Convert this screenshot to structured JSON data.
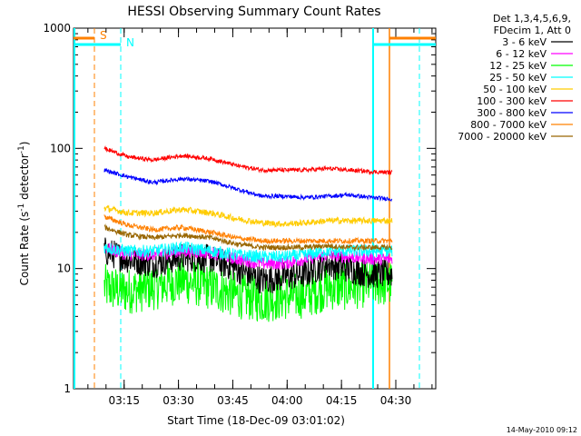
{
  "chart_data": {
    "type": "line",
    "title": "HESSI Observing Summary Count Rates",
    "xlabel": "Start Time (18-Dec-09 03:01:02)",
    "ylabel_main": "Count Rate (s",
    "ylabel_sup1": "-1",
    "ylabel_mid": " detector",
    "ylabel_sup2": "-1",
    "ylabel_end": ")",
    "y_scale": "log",
    "ylim": [
      1,
      1000
    ],
    "xlim_minutes_from_start": [
      0,
      100
    ],
    "x_ticks": [
      {
        "label": "03:15",
        "minute": 13.97
      },
      {
        "label": "03:30",
        "minute": 28.97
      },
      {
        "label": "03:45",
        "minute": 43.97
      },
      {
        "label": "04:00",
        "minute": 58.97
      },
      {
        "label": "04:15",
        "minute": 73.97
      },
      {
        "label": "04:30",
        "minute": 88.97
      }
    ],
    "y_ticks": [
      {
        "label": "1",
        "value": 1
      },
      {
        "label": "10",
        "value": 10
      },
      {
        "label": "100",
        "value": 100
      },
      {
        "label": "1000",
        "value": 1000
      }
    ],
    "legend_header": [
      "Det 1,3,4,5,6,9,",
      "FDecim 1, Att 0"
    ],
    "legend_placement": "right",
    "annotations": [
      {
        "label": "S",
        "color": "#ff8000"
      },
      {
        "label": "N",
        "color": "#00ffff"
      }
    ],
    "data_window_minutes": [
      8.5,
      88
    ],
    "series": [
      {
        "name": "3 - 6 keV",
        "color": "#000000",
        "values": [
          [
            8.5,
            14
          ],
          [
            15,
            12
          ],
          [
            22,
            11
          ],
          [
            30,
            12.5
          ],
          [
            38,
            12
          ],
          [
            45,
            10
          ],
          [
            52,
            8
          ],
          [
            58,
            8.5
          ],
          [
            64,
            9
          ],
          [
            70,
            11
          ],
          [
            76,
            10
          ],
          [
            82,
            9
          ],
          [
            88,
            9
          ]
        ]
      },
      {
        "name": "6 - 12 keV",
        "color": "#ff00ff",
        "values": [
          [
            8.5,
            15
          ],
          [
            15,
            13
          ],
          [
            22,
            13
          ],
          [
            30,
            14
          ],
          [
            38,
            13.5
          ],
          [
            45,
            12
          ],
          [
            52,
            11
          ],
          [
            58,
            11
          ],
          [
            64,
            12
          ],
          [
            70,
            13
          ],
          [
            76,
            12.5
          ],
          [
            82,
            12
          ],
          [
            88,
            12
          ]
        ]
      },
      {
        "name": "12 - 25 keV",
        "color": "#00ff00",
        "values": [
          [
            8.5,
            7
          ],
          [
            15,
            6.5
          ],
          [
            22,
            7
          ],
          [
            30,
            8
          ],
          [
            38,
            7
          ],
          [
            45,
            6
          ],
          [
            52,
            5.5
          ],
          [
            58,
            5.8
          ],
          [
            64,
            6
          ],
          [
            70,
            7
          ],
          [
            76,
            7
          ],
          [
            82,
            7.5
          ],
          [
            88,
            7.5
          ]
        ]
      },
      {
        "name": "25 - 50 keV",
        "color": "#00ffff",
        "values": [
          [
            8.5,
            15
          ],
          [
            15,
            14
          ],
          [
            22,
            14
          ],
          [
            30,
            15
          ],
          [
            38,
            14
          ],
          [
            45,
            13
          ],
          [
            52,
            12.5
          ],
          [
            58,
            12.5
          ],
          [
            64,
            13
          ],
          [
            70,
            14
          ],
          [
            76,
            14
          ],
          [
            82,
            14
          ],
          [
            88,
            14
          ]
        ]
      },
      {
        "name": "50 - 100 keV",
        "color": "#ffcc00",
        "values": [
          [
            8.5,
            32
          ],
          [
            15,
            29
          ],
          [
            22,
            29
          ],
          [
            30,
            31
          ],
          [
            38,
            29
          ],
          [
            45,
            26
          ],
          [
            52,
            24
          ],
          [
            58,
            23.5
          ],
          [
            64,
            24
          ],
          [
            70,
            25
          ],
          [
            76,
            25
          ],
          [
            82,
            25
          ],
          [
            88,
            25
          ]
        ]
      },
      {
        "name": "100 - 300 keV",
        "color": "#ff0000",
        "values": [
          [
            8.5,
            100
          ],
          [
            15,
            85
          ],
          [
            22,
            80
          ],
          [
            30,
            87
          ],
          [
            38,
            82
          ],
          [
            45,
            72
          ],
          [
            52,
            66
          ],
          [
            58,
            66
          ],
          [
            64,
            66
          ],
          [
            70,
            68
          ],
          [
            76,
            66
          ],
          [
            82,
            64
          ],
          [
            88,
            63
          ]
        ]
      },
      {
        "name": "300 - 800 keV",
        "color": "#0000ff",
        "values": [
          [
            8.5,
            66
          ],
          [
            15,
            58
          ],
          [
            22,
            52
          ],
          [
            30,
            56
          ],
          [
            38,
            53
          ],
          [
            45,
            46
          ],
          [
            52,
            40
          ],
          [
            58,
            40
          ],
          [
            64,
            39
          ],
          [
            70,
            40
          ],
          [
            76,
            41
          ],
          [
            82,
            39
          ],
          [
            88,
            38
          ]
        ]
      },
      {
        "name": "800 - 7000 keV",
        "color": "#ff8000",
        "values": [
          [
            8.5,
            27
          ],
          [
            15,
            23
          ],
          [
            22,
            21
          ],
          [
            30,
            22
          ],
          [
            38,
            20
          ],
          [
            45,
            18
          ],
          [
            52,
            17
          ],
          [
            58,
            17
          ],
          [
            64,
            17
          ],
          [
            70,
            17
          ],
          [
            76,
            17
          ],
          [
            82,
            17
          ],
          [
            88,
            17
          ]
        ]
      },
      {
        "name": "7000 - 20000 keV",
        "color": "#996600",
        "values": [
          [
            8.5,
            22
          ],
          [
            15,
            19
          ],
          [
            22,
            18
          ],
          [
            30,
            19
          ],
          [
            38,
            18
          ],
          [
            45,
            16
          ],
          [
            52,
            15
          ],
          [
            58,
            15
          ],
          [
            64,
            15
          ],
          [
            70,
            15.5
          ],
          [
            76,
            15
          ],
          [
            82,
            15
          ],
          [
            88,
            15
          ]
        ]
      }
    ]
  },
  "footer_stamp": "14-May-2010 09:12"
}
